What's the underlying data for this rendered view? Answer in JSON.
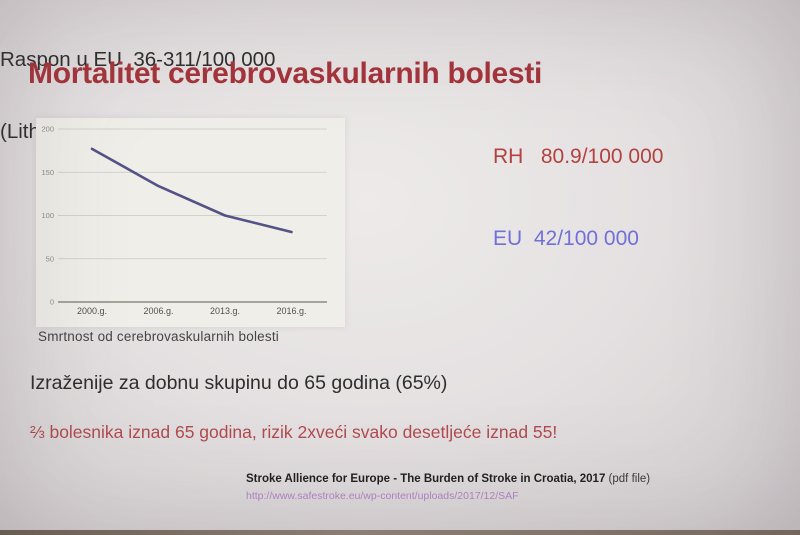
{
  "slide": {
    "title": "Mortalitet cerebrovaskularnih bolesti",
    "chart_caption": "Smrtnost od cerebrovaskularnih bolesti",
    "stats": {
      "rh": "RH   80.9/100 000",
      "eu": "EU  42/100 000",
      "raspon_line1": "Raspon u EU  36-311/100 000",
      "raspon_line2": "(Lithenštajn-Bugarska)"
    },
    "notes": {
      "age": "Izraženije za dobnu skupinu do 65 godina (65%)",
      "risk": "⅔ bolesnika iznad 65 godina, rizik 2xveći svako desetljeće iznad 55!"
    },
    "footer": {
      "reference": "Stroke Allience for Europe - The Burden of Stroke in Croatia, 2017",
      "reference_note": " (pdf file)",
      "url": "http://www.safestroke.eu/wp-content/uploads/2017/12/SAF"
    },
    "colors": {
      "title_red": "#a5343b",
      "rh_red": "#b2423f",
      "eu_blue": "#7170d6",
      "text_black": "#2e2e2c",
      "risk_red": "#b14b4f",
      "url_purple": "#b184c6",
      "line_navy": "#45457e"
    }
  },
  "chart_data": {
    "type": "line",
    "categories": [
      "2000.g.",
      "2006.g.",
      "2013.g.",
      "2016.g."
    ],
    "series": [
      {
        "name": "Smrtnost od cerebrovaskularnih bolesti",
        "values": [
          177,
          134,
          100,
          80.9
        ]
      }
    ],
    "title": "",
    "xlabel": "",
    "ylabel": "",
    "ylim": [
      0,
      200
    ],
    "yticks": [
      0,
      50,
      100,
      150,
      200
    ],
    "grid": true,
    "legend": false,
    "line_color": "#45457e"
  }
}
